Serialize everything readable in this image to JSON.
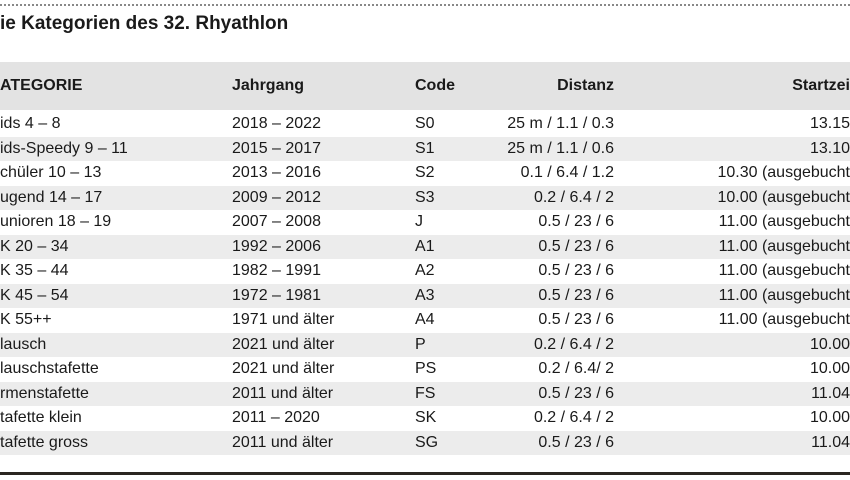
{
  "title": "ie Kategorien des 32. Rhyathlon",
  "table": {
    "header": [
      "ATEGORIE",
      "Jahrgang",
      "Code",
      "Distanz",
      "Startzei"
    ],
    "rows": [
      [
        "ids 4 – 8",
        "2018 – 2022",
        "S0",
        "25 m / 1.1 / 0.3",
        "13.15"
      ],
      [
        "ids-Speedy 9 – 11",
        "2015 – 2017",
        "S1",
        "25 m / 1.1 / 0.6",
        "13.10"
      ],
      [
        "chüler 10 – 13",
        "2013 – 2016",
        "S2",
        "0.1 / 6.4 / 1.2",
        "10.30 (ausgebucht"
      ],
      [
        "ugend 14 – 17",
        "2009 – 2012",
        "S3",
        "0.2 / 6.4 / 2",
        "10.00 (ausgebucht"
      ],
      [
        "unioren 18 – 19",
        "2007 – 2008",
        "J",
        "0.5 / 23 / 6",
        "11.00 (ausgebucht"
      ],
      [
        "K 20 – 34",
        "1992 – 2006",
        "A1",
        "0.5 / 23 / 6",
        "11.00 (ausgebucht"
      ],
      [
        "K 35 – 44",
        "1982 – 1991",
        "A2",
        "0.5 / 23 / 6",
        "11.00 (ausgebucht"
      ],
      [
        "K 45 – 54",
        "1972 – 1981",
        "A3",
        "0.5 / 23 / 6",
        "11.00 (ausgebucht"
      ],
      [
        "K 55++",
        "1971 und älter",
        "A4",
        "0.5 / 23 / 6",
        "11.00 (ausgebucht"
      ],
      [
        "lausch",
        "2021 und älter",
        "P",
        "0.2 / 6.4 / 2",
        "10.00"
      ],
      [
        "lauschstafette",
        "2021 und älter",
        "PS",
        "0.2 / 6.4/ 2",
        "10.00"
      ],
      [
        "rmenstafette",
        "2011 und älter",
        "FS",
        "0.5 / 23 / 6",
        "11.04"
      ],
      [
        "tafette klein",
        "2011 – 2020",
        "SK",
        "0.2 / 6.4 / 2",
        "10.00"
      ],
      [
        "tafette gross",
        "2011 und älter",
        "SG",
        "0.5 / 23 / 6",
        "11.04"
      ]
    ]
  }
}
